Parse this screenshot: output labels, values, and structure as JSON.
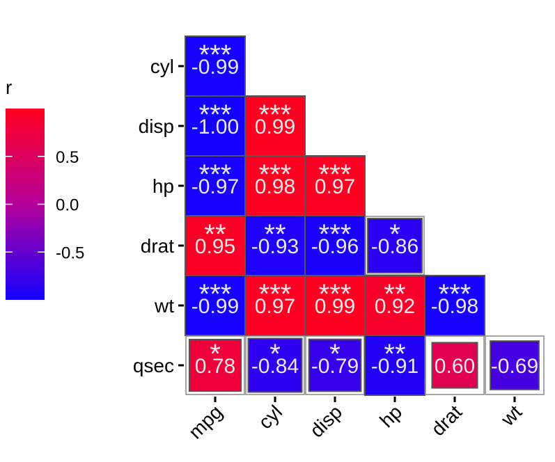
{
  "chart_data": {
    "type": "heatmap",
    "x_labels": [
      "mpg",
      "cyl",
      "disp",
      "hp",
      "drat",
      "wt"
    ],
    "y_labels": [
      "cyl",
      "disp",
      "hp",
      "drat",
      "wt",
      "qsec"
    ],
    "cells": [
      {
        "row": "cyl",
        "col": "mpg",
        "value": "-0.99",
        "r": -0.99,
        "stars": "***"
      },
      {
        "row": "disp",
        "col": "mpg",
        "value": "-1.00",
        "r": -1.0,
        "stars": "***"
      },
      {
        "row": "disp",
        "col": "cyl",
        "value": "0.99",
        "r": 0.99,
        "stars": "***"
      },
      {
        "row": "hp",
        "col": "mpg",
        "value": "-0.97",
        "r": -0.97,
        "stars": "***"
      },
      {
        "row": "hp",
        "col": "cyl",
        "value": "0.98",
        "r": 0.98,
        "stars": "***"
      },
      {
        "row": "hp",
        "col": "disp",
        "value": "0.97",
        "r": 0.97,
        "stars": "***"
      },
      {
        "row": "drat",
        "col": "mpg",
        "value": "0.95",
        "r": 0.95,
        "stars": "**"
      },
      {
        "row": "drat",
        "col": "cyl",
        "value": "-0.93",
        "r": -0.93,
        "stars": "**"
      },
      {
        "row": "drat",
        "col": "disp",
        "value": "-0.96",
        "r": -0.96,
        "stars": "***"
      },
      {
        "row": "drat",
        "col": "hp",
        "value": "-0.86",
        "r": -0.86,
        "stars": "*"
      },
      {
        "row": "wt",
        "col": "mpg",
        "value": "-0.99",
        "r": -0.99,
        "stars": "***"
      },
      {
        "row": "wt",
        "col": "cyl",
        "value": "0.97",
        "r": 0.97,
        "stars": "***"
      },
      {
        "row": "wt",
        "col": "disp",
        "value": "0.99",
        "r": 0.99,
        "stars": "***"
      },
      {
        "row": "wt",
        "col": "hp",
        "value": "0.92",
        "r": 0.92,
        "stars": "**"
      },
      {
        "row": "wt",
        "col": "drat",
        "value": "-0.98",
        "r": -0.98,
        "stars": "***"
      },
      {
        "row": "qsec",
        "col": "mpg",
        "value": "0.78",
        "r": 0.78,
        "stars": "*"
      },
      {
        "row": "qsec",
        "col": "cyl",
        "value": "-0.84",
        "r": -0.84,
        "stars": "*"
      },
      {
        "row": "qsec",
        "col": "disp",
        "value": "-0.79",
        "r": -0.79,
        "stars": "*"
      },
      {
        "row": "qsec",
        "col": "hp",
        "value": "-0.91",
        "r": -0.91,
        "stars": "**"
      },
      {
        "row": "qsec",
        "col": "drat",
        "value": "0.60",
        "r": 0.6,
        "stars": ""
      },
      {
        "row": "qsec",
        "col": "wt",
        "value": "-0.69",
        "r": -0.69,
        "stars": ""
      }
    ],
    "legend": {
      "title": "r",
      "ticks": [
        "0.5",
        "0.0",
        "-0.5"
      ],
      "tick_values": [
        0.5,
        0.0,
        -0.5
      ],
      "range": [
        -1,
        1
      ],
      "colors": {
        "low": "#1400ff",
        "mid": "#b4009a",
        "high": "#ff0020"
      }
    }
  }
}
